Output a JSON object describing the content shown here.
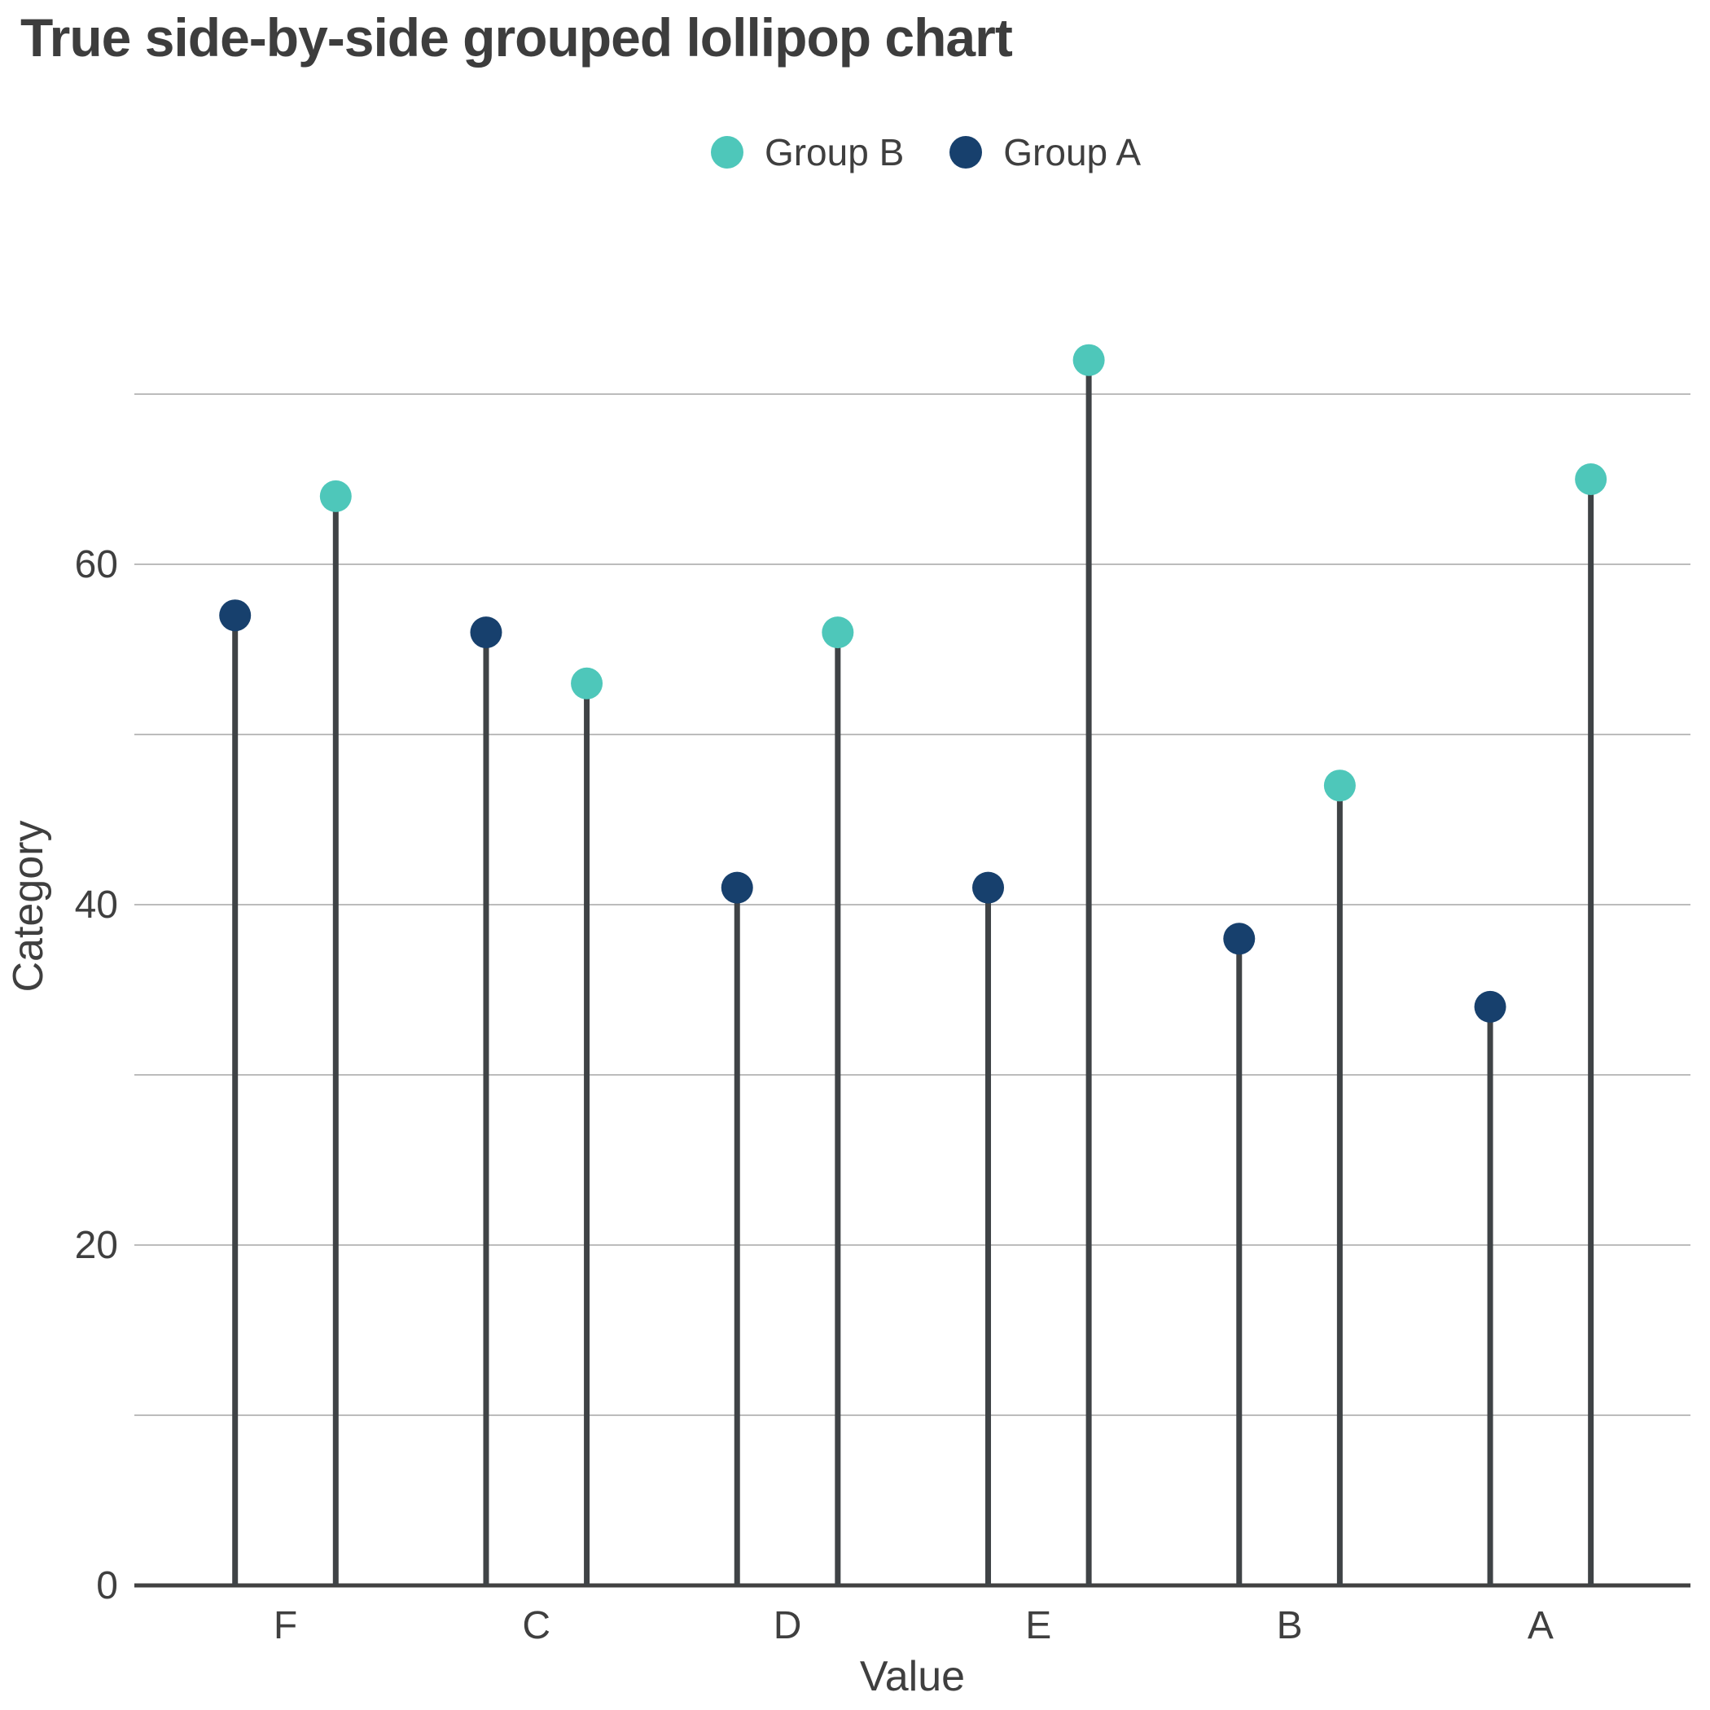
{
  "title": "True side-by-side grouped lollipop chart",
  "legend": [
    {
      "label": "Group B",
      "color": "#4EC7BA"
    },
    {
      "label": "Group A",
      "color": "#17406D"
    }
  ],
  "axes": {
    "x_label": "Value",
    "y_label": "Category",
    "y_tick_labels": [
      "0",
      "20",
      "40",
      "60"
    ]
  },
  "colors": {
    "group_b_teal": "#4EC7BA",
    "group_a_navy": "#17406D",
    "stem": "#3F4346",
    "axis_line": "#414141",
    "gridline": "#A6A6A6",
    "text": "#3F3F3F",
    "title_text": "#3D3D3D",
    "background": "#FFFFFF"
  },
  "chart_data": {
    "type": "bar",
    "subtype": "grouped-lollipop-vertical",
    "title": "True side-by-side grouped lollipop chart",
    "xlabel": "Value",
    "ylabel": "Category",
    "categories": [
      "F",
      "C",
      "D",
      "E",
      "B",
      "A"
    ],
    "series": [
      {
        "name": "Group A",
        "side": "left",
        "color": "#17406D",
        "values": [
          57,
          56,
          41,
          41,
          38,
          34
        ]
      },
      {
        "name": "Group B",
        "side": "right",
        "color": "#4EC7BA",
        "values": [
          64,
          53,
          56,
          72,
          47,
          65
        ]
      }
    ],
    "ylim": [
      0,
      75
    ],
    "yticks": [
      0,
      20,
      40,
      60
    ],
    "minor_gridline_step": 10,
    "grid": "horizontal-only",
    "legend_position": "top-center",
    "legend_order": [
      "Group B",
      "Group A"
    ]
  }
}
